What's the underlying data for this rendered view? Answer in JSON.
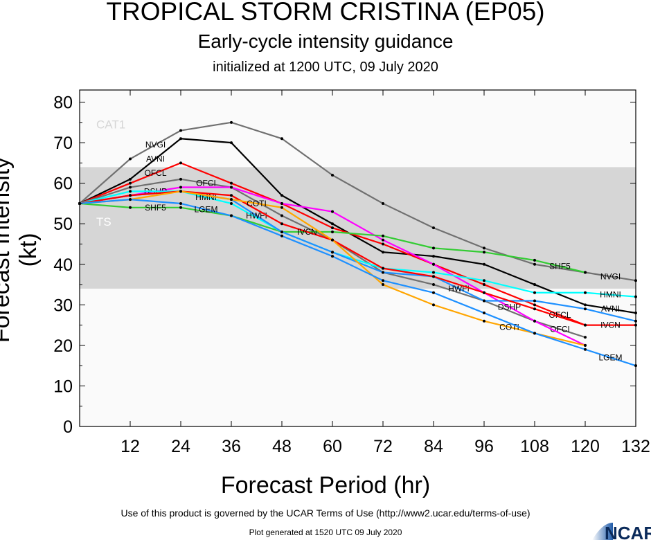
{
  "title": "TROPICAL STORM CRISTINA (EP05)",
  "subtitle": "Early-cycle intensity guidance",
  "initialized": "initialized at 1200 UTC, 09 July 2020",
  "footer": {
    "terms": "Use of this product is governed by the UCAR Terms of Use (http://www2.ucar.edu/terms-of-use)",
    "generated": "Plot generated at 1520 UTC   09 July 2020",
    "logo": "NCAR"
  },
  "chart_data": {
    "type": "line",
    "xlabel": "Forecast Period (hr)",
    "ylabel": "Forecast Intensity (kt)",
    "xlim": [
      0,
      132
    ],
    "ylim": [
      0,
      83
    ],
    "xticks": [
      12,
      24,
      36,
      48,
      60,
      72,
      84,
      96,
      108,
      120,
      132
    ],
    "yticks": [
      0,
      10,
      20,
      30,
      40,
      50,
      60,
      70,
      80
    ],
    "bands": [
      {
        "label": "TS",
        "range": [
          34,
          64
        ],
        "color": "#d6d6d6"
      },
      {
        "label": "CAT1",
        "range": [
          64,
          83
        ],
        "color": "#fafafa"
      }
    ],
    "x": [
      0,
      12,
      24,
      36,
      48,
      60,
      72,
      84,
      96,
      108,
      120,
      132
    ],
    "series": [
      {
        "name": "NVGI",
        "color": "#707070",
        "values": [
          55,
          66,
          73,
          75,
          71,
          62,
          55,
          49,
          44,
          40,
          38,
          36
        ]
      },
      {
        "name": "AVNI",
        "color": "#000000",
        "values": [
          55,
          61,
          71,
          70,
          57,
          50,
          43,
          42,
          40,
          35,
          30,
          28
        ]
      },
      {
        "name": "OFCL",
        "color": "#ff0000",
        "values": [
          55,
          60,
          65,
          60,
          55,
          49,
          45,
          40,
          35,
          30,
          25,
          null
        ]
      },
      {
        "name": "OFCI",
        "color": "#707070",
        "values": [
          55,
          59,
          61,
          59,
          52,
          46,
          38,
          35,
          31,
          26,
          22,
          null
        ]
      },
      {
        "name": "DSHP",
        "color": "#ff00ff",
        "values": [
          55,
          57,
          59,
          59,
          55,
          53,
          46,
          40,
          33,
          26,
          20,
          null
        ]
      },
      {
        "name": "SHF5",
        "color": "#33cc33",
        "values": [
          55,
          54,
          54,
          52,
          48,
          48,
          47,
          44,
          43,
          41,
          38,
          null
        ]
      },
      {
        "name": "HMNI",
        "color": "#00ffff",
        "values": [
          55,
          58,
          58,
          55,
          48,
          43,
          39,
          38,
          36,
          33,
          33,
          32
        ]
      },
      {
        "name": "HWFI",
        "color": "#1e90ff",
        "values": [
          55,
          57,
          58,
          56,
          48,
          43,
          38,
          37,
          31,
          31,
          29,
          26
        ]
      },
      {
        "name": "IVCN",
        "color": "#ff0000",
        "values": [
          55,
          57,
          58,
          57,
          50,
          46,
          39,
          37,
          33,
          29,
          25,
          25
        ]
      },
      {
        "name": "COTI",
        "color": "#ffa500",
        "values": [
          55,
          56,
          58,
          56,
          54,
          46,
          35,
          30,
          26,
          23,
          20,
          null
        ]
      },
      {
        "name": "LGEM",
        "color": "#1e90ff",
        "values": [
          55,
          56,
          55,
          52,
          47,
          42,
          36,
          33,
          28,
          23,
          19,
          15
        ]
      }
    ]
  }
}
